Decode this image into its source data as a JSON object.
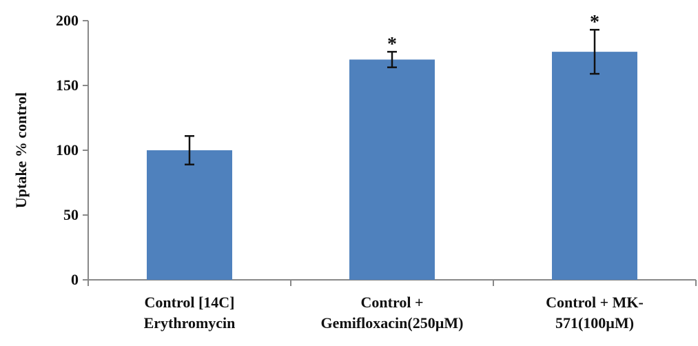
{
  "chart_data": {
    "type": "bar",
    "title": "",
    "ylabel": "Uptake % control",
    "xlabel": "",
    "ylim": [
      0,
      200
    ],
    "yticks": [
      0,
      50,
      100,
      150,
      200
    ],
    "grid": false,
    "bar_color": "#4f81bd",
    "categories": [
      [
        "Control [14C]",
        "Erythromycin"
      ],
      [
        "Control +",
        "Gemifloxacin(250µM)"
      ],
      [
        "Control + MK-",
        "571(100µM)"
      ]
    ],
    "values": [
      100,
      170,
      176
    ],
    "errors": [
      11,
      6,
      17
    ],
    "annotations": [
      "",
      "*",
      "*"
    ]
  }
}
